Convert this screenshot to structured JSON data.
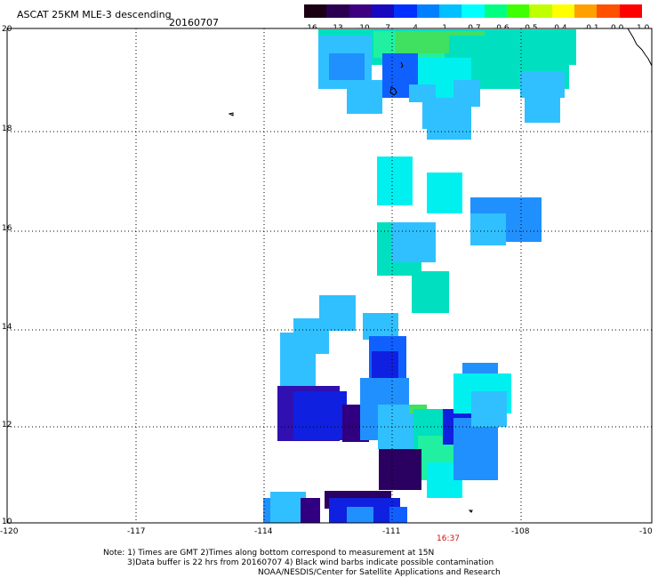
{
  "header": {
    "title": "ASCAT 25KM MLE-3 descending",
    "date": "20160707"
  },
  "colorbar": {
    "labels": [
      "-16",
      "-13",
      "-10",
      "-7",
      "-4",
      "-1",
      "-0.7",
      "-0.6",
      "-0.5",
      "-0.4",
      "-0.1",
      "0.0",
      "1.0"
    ],
    "colors": [
      "#1a0012",
      "#2c0050",
      "#3c0080",
      "#1808c0",
      "#0030ff",
      "#0080ff",
      "#00c0ff",
      "#00ffff",
      "#00ff80",
      "#40ff00",
      "#c0ff00",
      "#ffff00",
      "#ffa000",
      "#ff5000",
      "#ff0000"
    ]
  },
  "map": {
    "lat_labels": [
      "20",
      "18",
      "16",
      "14",
      "12",
      "10"
    ],
    "lon_labels": [
      "-120",
      "-117",
      "-114",
      "-111",
      "-108",
      "-10"
    ],
    "pass_time": "16:37"
  },
  "notes": {
    "line1": "Note: 1) Times are GMT 2)Times along bottom correspond to measurement at 15N",
    "line2": "3)Data buffer is 22 hrs from 20160707 4) Black wind barbs indicate possible contamination",
    "line3": "NOAA/NESDIS/Center for Satellite Applications and Research"
  }
}
